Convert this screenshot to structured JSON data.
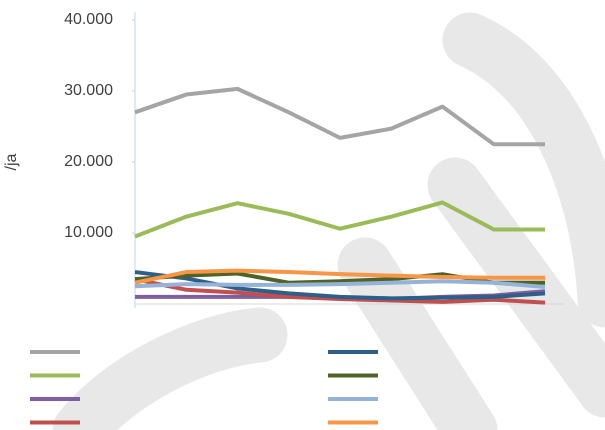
{
  "chart_data": {
    "type": "line",
    "ylabel": "/ja",
    "categories": [
      null,
      null,
      null,
      null,
      null,
      null,
      null,
      null,
      null
    ],
    "ylim": [
      0,
      40000
    ],
    "yticks": [
      {
        "value": 10000,
        "label": "10.000"
      },
      {
        "value": 20000,
        "label": "20.000"
      },
      {
        "value": 30000,
        "label": "30.000"
      },
      {
        "value": 40000,
        "label": "40.000"
      }
    ],
    "series": [
      {
        "color": "#a5a5a5",
        "values": [
          27000,
          29500,
          30300,
          27000,
          23400,
          24700,
          27800,
          22500,
          22500
        ]
      },
      {
        "color": "#9bbb59",
        "values": [
          9500,
          12300,
          14200,
          12700,
          10600,
          12300,
          14300,
          10500,
          10500
        ]
      },
      {
        "color": "#7f5fa0",
        "values": [
          1000,
          1000,
          1000,
          1000,
          800,
          700,
          1000,
          1200,
          1800
        ]
      },
      {
        "color": "#c0504d",
        "values": [
          3500,
          2000,
          1600,
          1000,
          700,
          500,
          300,
          600,
          200
        ]
      },
      {
        "color": "#2e5f8a",
        "values": [
          4500,
          3600,
          2200,
          1500,
          1000,
          800,
          900,
          1000,
          1500
        ]
      },
      {
        "color": "#4f6228",
        "values": [
          3500,
          4000,
          4300,
          3000,
          3200,
          3500,
          4200,
          3000,
          3000
        ]
      },
      {
        "color": "#95b3d7",
        "values": [
          2500,
          2800,
          2700,
          2700,
          2800,
          3000,
          3200,
          3000,
          2400
        ]
      },
      {
        "color": "#f79646",
        "values": [
          3000,
          4500,
          4700,
          4500,
          4200,
          4000,
          3800,
          3700,
          3700
        ]
      }
    ]
  }
}
